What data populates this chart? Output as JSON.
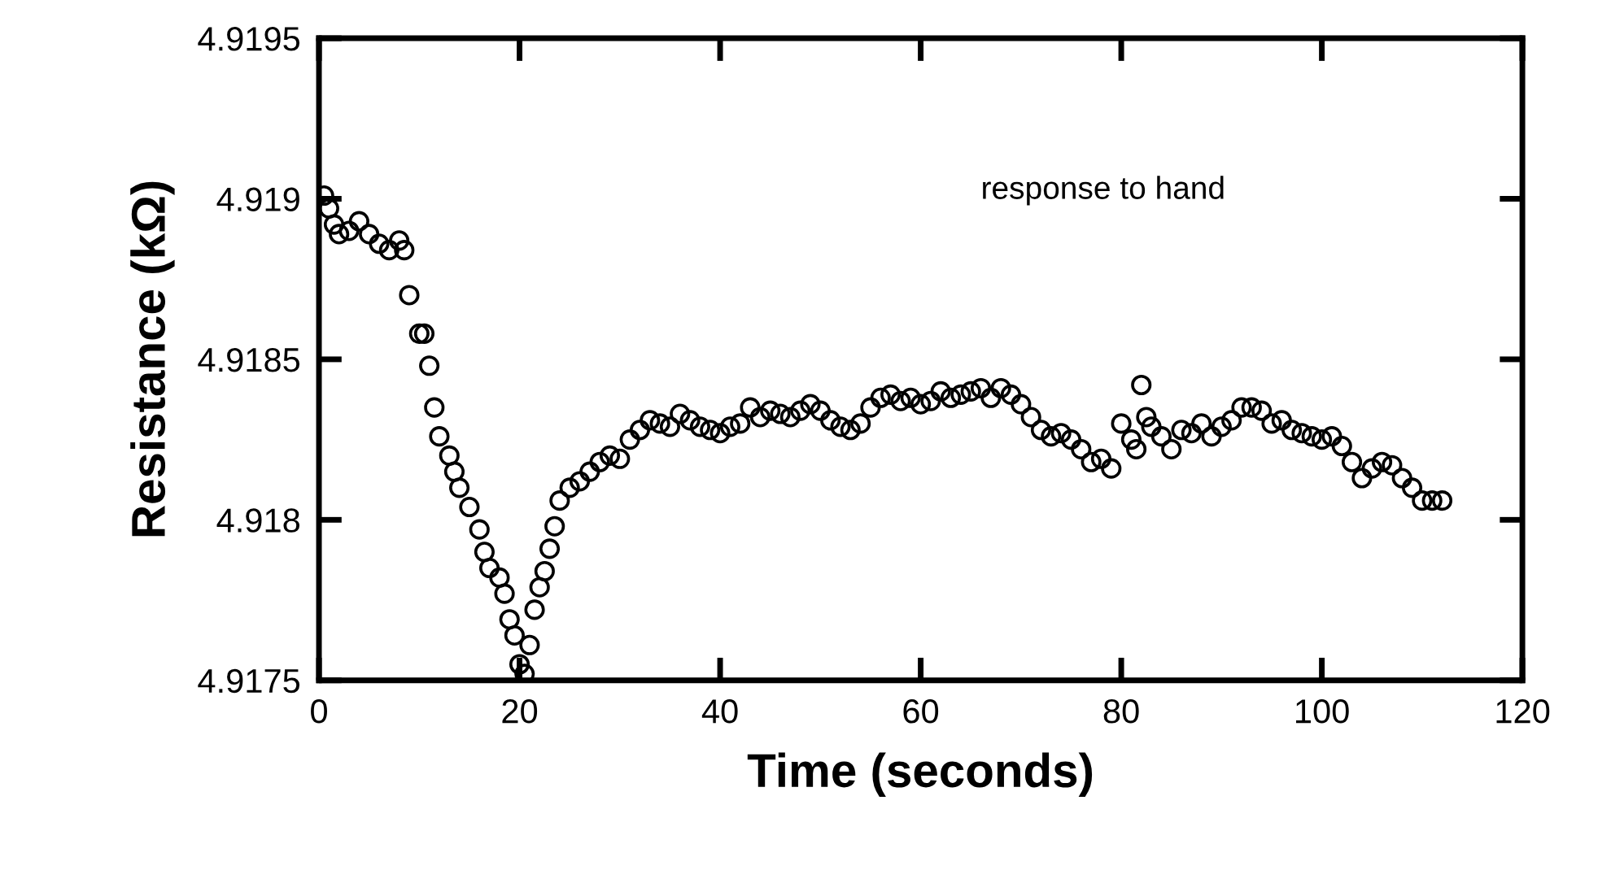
{
  "chart_data": {
    "type": "scatter",
    "xlabel": "Time (seconds)",
    "ylabel": "Resistance (kΩ)",
    "annotations": [
      "response to hand"
    ],
    "marker": "circle",
    "grid": false,
    "xlim": [
      0,
      120
    ],
    "ylim": [
      4.9175,
      4.9195
    ],
    "xticks": [
      0,
      20,
      40,
      60,
      80,
      100,
      120
    ],
    "yticks": [
      4.9175,
      4.918,
      4.9185,
      4.919,
      4.9195
    ],
    "x": [
      0.5,
      1,
      1.5,
      2,
      3,
      4,
      5,
      6,
      7,
      8,
      8.5,
      9,
      10,
      10.5,
      11,
      11.5,
      12,
      13,
      13.5,
      14,
      15,
      16,
      16.5,
      17,
      18,
      18.5,
      19,
      19.5,
      20,
      20.5,
      21,
      21.5,
      22,
      22.5,
      23,
      23.5,
      24,
      25,
      26,
      27,
      28,
      29,
      30,
      31,
      32,
      33,
      34,
      35,
      36,
      37,
      38,
      39,
      40,
      41,
      42,
      43,
      44,
      45,
      46,
      47,
      48,
      49,
      50,
      51,
      52,
      53,
      54,
      55,
      56,
      57,
      58,
      59,
      60,
      61,
      62,
      63,
      64,
      65,
      66,
      67,
      68,
      69,
      70,
      71,
      72,
      73,
      74,
      75,
      76,
      77,
      78,
      79,
      80,
      81,
      81.5,
      82,
      82.5,
      83,
      84,
      85,
      86,
      87,
      88,
      89,
      90,
      91,
      92,
      93,
      94,
      95,
      96,
      97,
      98,
      99,
      100,
      101,
      102,
      103,
      104,
      105,
      106,
      107,
      108,
      109,
      110,
      111,
      112
    ],
    "series": [
      {
        "color": "#000000",
        "values": [
          4.91901,
          4.91897,
          4.91892,
          4.91889,
          4.9189,
          4.91893,
          4.91889,
          4.91886,
          4.91884,
          4.91887,
          4.91884,
          4.9187,
          4.91858,
          4.91858,
          4.91848,
          4.91835,
          4.91826,
          4.9182,
          4.91815,
          4.9181,
          4.91804,
          4.91797,
          4.9179,
          4.91785,
          4.91782,
          4.91777,
          4.91769,
          4.91764,
          4.91755,
          4.91752,
          4.91761,
          4.91772,
          4.91779,
          4.91784,
          4.91791,
          4.91798,
          4.91806,
          4.9181,
          4.91812,
          4.91815,
          4.91818,
          4.9182,
          4.91819,
          4.91825,
          4.91828,
          4.91831,
          4.9183,
          4.91829,
          4.91833,
          4.91831,
          4.91829,
          4.91828,
          4.91827,
          4.91829,
          4.9183,
          4.91835,
          4.91832,
          4.91834,
          4.91833,
          4.91832,
          4.91834,
          4.91836,
          4.91834,
          4.91831,
          4.91829,
          4.91828,
          4.9183,
          4.91835,
          4.91838,
          4.91839,
          4.91837,
          4.91838,
          4.91836,
          4.91837,
          4.9184,
          4.91838,
          4.91839,
          4.9184,
          4.91841,
          4.91838,
          4.91841,
          4.91839,
          4.91836,
          4.91832,
          4.91828,
          4.91826,
          4.91827,
          4.91825,
          4.91822,
          4.91818,
          4.91819,
          4.91816,
          4.9183,
          4.91825,
          4.91822,
          4.91842,
          4.91832,
          4.91829,
          4.91826,
          4.91822,
          4.91828,
          4.91827,
          4.9183,
          4.91826,
          4.91829,
          4.91831,
          4.91835,
          4.91835,
          4.91834,
          4.9183,
          4.91831,
          4.91828,
          4.91827,
          4.91826,
          4.91825,
          4.91826,
          4.91823,
          4.91818,
          4.91813,
          4.91816,
          4.91818,
          4.91817,
          4.91813,
          4.9181,
          4.91806,
          4.91806,
          4.91806
        ]
      }
    ]
  }
}
